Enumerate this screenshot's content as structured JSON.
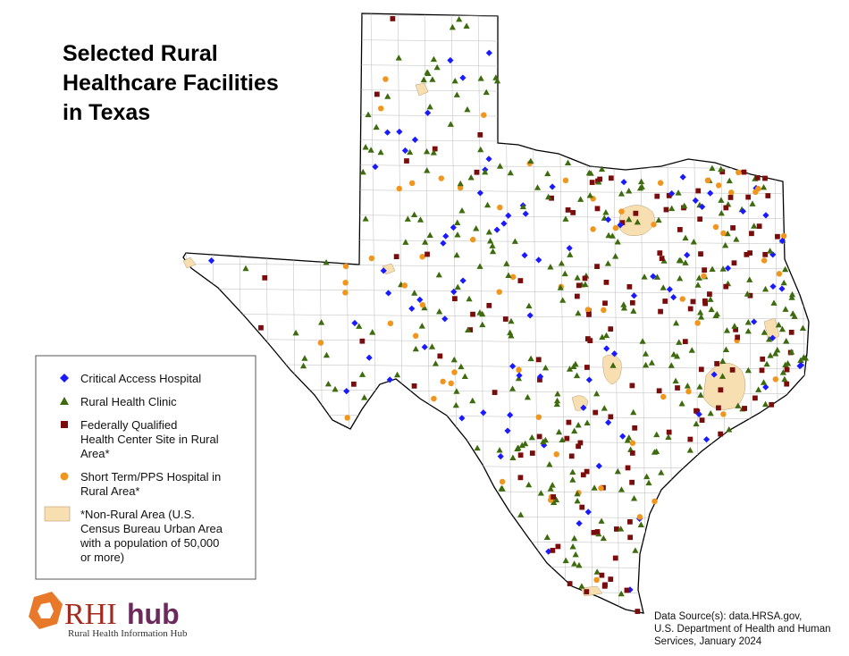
{
  "title": {
    "lines": [
      "Selected Rural",
      "Healthcare Facilities",
      "in Texas"
    ]
  },
  "legend": {
    "items": [
      {
        "symbol": "diamond",
        "color": "#1a1aff",
        "lines": [
          "Critical Access Hospital"
        ]
      },
      {
        "symbol": "triangle",
        "color": "#3d6b0e",
        "lines": [
          "Rural Health Clinic"
        ]
      },
      {
        "symbol": "square",
        "color": "#7a0c0c",
        "lines": [
          "Federally Qualified",
          "Health Center Site in Rural",
          "Area*"
        ]
      },
      {
        "symbol": "circle",
        "color": "#f0961e",
        "lines": [
          "Short Term/PPS Hospital in",
          "Rural Area*"
        ]
      },
      {
        "symbol": "area",
        "color": "#f7dfb2",
        "lines": [
          "*Non-Rural Area (U.S.",
          "Census Bureau Urban Area",
          "with a population of 50,000",
          "or more)"
        ]
      }
    ]
  },
  "logo": {
    "brand": "RHI",
    "suffix": "hub",
    "tagline": "Rural Health Information Hub"
  },
  "source": {
    "lines": [
      "Data Source(s): data.HRSA.gov,",
      "U.S. Department of Health and Human",
      "Services, January 2024"
    ]
  }
}
